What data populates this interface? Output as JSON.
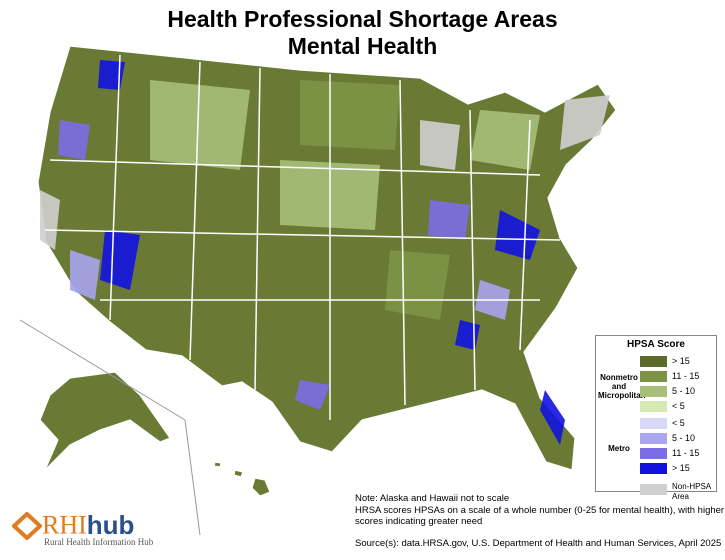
{
  "title": [
    "Health Professional Shortage Areas",
    "Mental Health"
  ],
  "legend": {
    "title": "HPSA Score",
    "groups": [
      {
        "label": [
          "Nonmetro",
          "and",
          "Micropolitan"
        ],
        "items": [
          {
            "label": "> 15",
            "color": "#5c6a2c"
          },
          {
            "label": "11 - 15",
            "color": "#7d9446"
          },
          {
            "label": "5 - 10",
            "color": "#a8bf7a"
          },
          {
            "label": "< 5",
            "color": "#d5e9b1"
          }
        ]
      },
      {
        "label": [
          "Metro"
        ],
        "items": [
          {
            "label": "< 5",
            "color": "#d8d8f6"
          },
          {
            "label": "5 - 10",
            "color": "#a9a5ef"
          },
          {
            "label": "11 - 15",
            "color": "#7b6de6"
          },
          {
            "label": "> 15",
            "color": "#1212e0"
          }
        ]
      }
    ],
    "other": {
      "label": [
        "Non-HPSA",
        "Area"
      ],
      "color": "#d0d0d0"
    }
  },
  "notes": [
    "Note: Alaska and Hawaii not to scale",
    "HRSA scores HPSAs on a scale of a whole number (0-25 for mental health), with higher",
    "scores indicating greater need"
  ],
  "source": "Source(s): data.HRSA.gov, U.S. Department of Health and Human Services, April 2025",
  "logo": {
    "brand": "RHI",
    "brand2": "hub",
    "subtitle": "Rural Health Information Hub"
  }
}
